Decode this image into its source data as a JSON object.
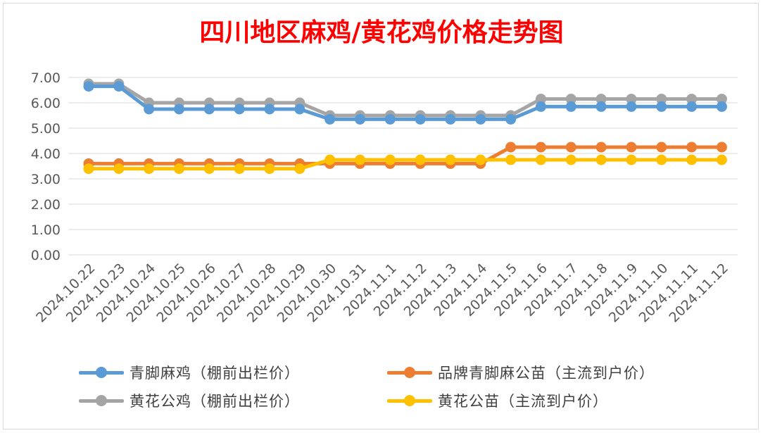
{
  "chart_data": {
    "type": "line",
    "title": "四川地区麻鸡/黄花鸡价格走势图",
    "title_color": "#ff0000",
    "ylim": [
      0,
      7
    ],
    "yticks": [
      "0.00",
      "1.00",
      "2.00",
      "3.00",
      "4.00",
      "5.00",
      "6.00",
      "7.00"
    ],
    "grid": true,
    "legend_position": "bottom",
    "categories": [
      "2024.10.22",
      "2024.10.23",
      "2024.10.24",
      "2024.10.25",
      "2024.10.26",
      "2024.10.27",
      "2024.10.28",
      "2024.10.29",
      "2024.10.30",
      "2024.10.31",
      "2024.11.1",
      "2024.11.2",
      "2024.11.3",
      "2024.11.4",
      "2024.11.5",
      "2024.11.6",
      "2024.11.7",
      "2024.11.8",
      "2024.11.9",
      "2024.11.10",
      "2024.11.11",
      "2024.11.12"
    ],
    "series": [
      {
        "name": "青脚麻鸡（棚前出栏价）",
        "color": "#5b9bd5",
        "values": [
          6.65,
          6.65,
          5.75,
          5.75,
          5.75,
          5.75,
          5.75,
          5.75,
          5.35,
          5.35,
          5.35,
          5.35,
          5.35,
          5.35,
          5.35,
          5.85,
          5.85,
          5.85,
          5.85,
          5.85,
          5.85,
          5.85
        ]
      },
      {
        "name": "品牌青脚麻公苗（主流到户价）",
        "color": "#ed7d31",
        "values": [
          3.6,
          3.6,
          3.6,
          3.6,
          3.6,
          3.6,
          3.6,
          3.6,
          3.6,
          3.6,
          3.6,
          3.6,
          3.6,
          3.6,
          4.25,
          4.25,
          4.25,
          4.25,
          4.25,
          4.25,
          4.25,
          4.25
        ]
      },
      {
        "name": "黄花公鸡（棚前出栏价）",
        "color": "#a5a5a5",
        "values": [
          6.75,
          6.75,
          6.0,
          6.0,
          6.0,
          6.0,
          6.0,
          6.0,
          5.5,
          5.5,
          5.5,
          5.5,
          5.5,
          5.5,
          5.5,
          6.15,
          6.15,
          6.15,
          6.15,
          6.15,
          6.15,
          6.15
        ]
      },
      {
        "name": "黄花公苗（主流到户价）",
        "color": "#ffc000",
        "values": [
          3.4,
          3.4,
          3.4,
          3.4,
          3.4,
          3.4,
          3.4,
          3.4,
          3.75,
          3.75,
          3.75,
          3.75,
          3.75,
          3.75,
          3.75,
          3.75,
          3.75,
          3.75,
          3.75,
          3.75,
          3.75,
          3.75
        ]
      }
    ],
    "draw_order": [
      2,
      0,
      1,
      3
    ],
    "legend_order": [
      0,
      1,
      2,
      3
    ]
  }
}
